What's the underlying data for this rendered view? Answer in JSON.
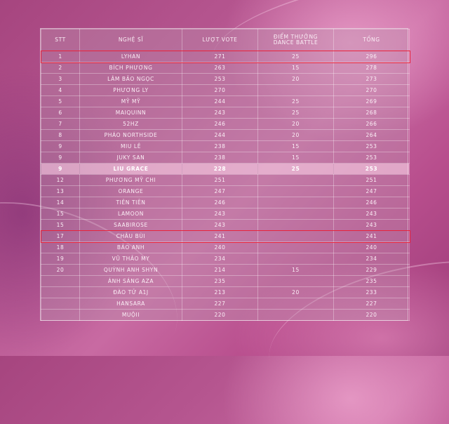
{
  "table": {
    "headers": [
      "STT",
      "NGHỆ SĨ",
      "LƯỢT VOTE",
      "ĐIỂM THƯỞNG DANCE BATTLE",
      "TỔNG"
    ],
    "rows": [
      [
        "1",
        "LYHAN",
        "271",
        "25",
        "296"
      ],
      [
        "2",
        "BÍCH PHƯƠNG",
        "263",
        "15",
        "278"
      ],
      [
        "3",
        "LÂM BẢO NGỌC",
        "253",
        "20",
        "273"
      ],
      [
        "4",
        "PHƯƠNG LY",
        "270",
        "",
        "270"
      ],
      [
        "5",
        "MỸ MỸ",
        "244",
        "25",
        "269"
      ],
      [
        "6",
        "MAIQUINN",
        "243",
        "25",
        "268"
      ],
      [
        "7",
        "52HZ",
        "246",
        "20",
        "266"
      ],
      [
        "8",
        "PHÁO NORTHSIDE",
        "244",
        "20",
        "264"
      ],
      [
        "9",
        "MIU LÊ",
        "238",
        "15",
        "253"
      ],
      [
        "9",
        "JUKY SAN",
        "238",
        "15",
        "253"
      ],
      [
        "9",
        "LIU GRACE",
        "228",
        "25",
        "253"
      ],
      [
        "12",
        "PHƯƠNG MỸ CHI",
        "251",
        "",
        "251"
      ],
      [
        "13",
        "ORANGE",
        "247",
        "",
        "247"
      ],
      [
        "14",
        "TIÊN TIÊN",
        "246",
        "",
        "246"
      ],
      [
        "15",
        "LAMOON",
        "243",
        "",
        "243"
      ],
      [
        "15",
        "SAABIROSE",
        "243",
        "",
        "243"
      ],
      [
        "17",
        "CHÂU BÙI",
        "241",
        "",
        "241"
      ],
      [
        "18",
        "BẢO ANH",
        "240",
        "",
        "240"
      ],
      [
        "19",
        "VŨ THẢO MY",
        "234",
        "",
        "234"
      ],
      [
        "20",
        "QUỲNH ANH SHYN",
        "214",
        "15",
        "229"
      ],
      [
        "",
        "ÁNH SÁNG AZA",
        "235",
        "",
        "235"
      ],
      [
        "",
        "ĐÀO TỬ A1J",
        "213",
        "20",
        "233"
      ],
      [
        "",
        "HANSARA",
        "227",
        "",
        "227"
      ],
      [
        "",
        "MUỘII",
        "220",
        "",
        "220"
      ]
    ],
    "highlighted_row": 10,
    "boxed_rows": [
      0,
      16
    ]
  },
  "colors": {
    "highlight_box": "#e8223a",
    "highlight_row": "#f4cfe2"
  }
}
